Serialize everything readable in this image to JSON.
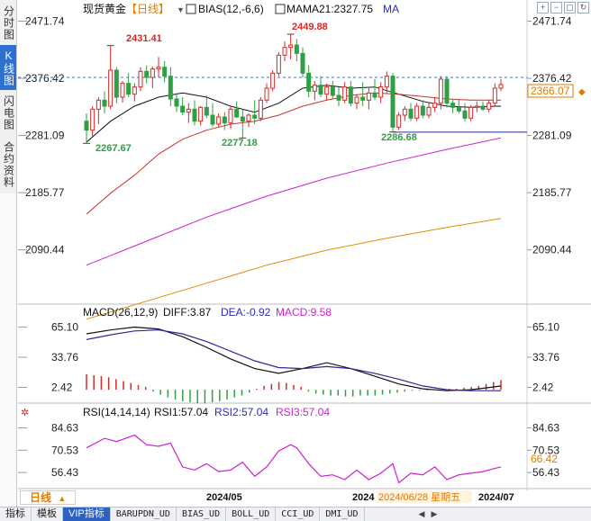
{
  "side_tabs": [
    {
      "label": "分时图",
      "active": false
    },
    {
      "label": "K线图",
      "active": true
    },
    {
      "label": "闪电图",
      "active": false
    },
    {
      "label": "合约资料",
      "active": false
    }
  ],
  "main_header": {
    "name": "现货黄金",
    "period": "【日线】",
    "bias": "BIAS(12,-6,6)",
    "mama": "MAMA21:2327.75",
    "ma": "MA"
  },
  "price_axis": {
    "ticks": [
      "2471.74",
      "2376.42",
      "2281.09",
      "2185.77",
      "2090.44"
    ]
  },
  "annotations": {
    "high1": "2431.41",
    "high2": "2449.88",
    "low1": "2267.67",
    "low2": "2277.18",
    "low3": "2286.68",
    "last_price": "2366.07"
  },
  "macd_header": {
    "title": "MACD(26,12,9)",
    "diff": "DIFF:3.87",
    "dea": "DEA:-0.92",
    "macd": "MACD:9.58"
  },
  "macd_axis": {
    "ticks": [
      "65.10",
      "33.76",
      "2.42"
    ]
  },
  "rsi_header": {
    "title": "RSI(14,14,14)",
    "rsi1": "RSI1:57.04",
    "rsi2": "RSI2:57.04",
    "rsi3": "RSI3:57.04"
  },
  "rsi_axis": {
    "ticks": [
      "84.63",
      "70.53",
      "56.43"
    ],
    "last": "66.42"
  },
  "date_axis": {
    "labels": [
      "2024/05",
      "2024",
      "2024/06/28 星期五",
      "2024/07"
    ]
  },
  "period_button": "日线",
  "bottom_tabs": [
    "指标",
    "模板",
    "VIP指标",
    "BARUPDN_UD",
    "BIAS_UD",
    "BOLL_UD",
    "CCI_UD",
    "DMI_UD"
  ],
  "colors": {
    "up": "#d62828",
    "down": "#2ea043",
    "ma_black": "#111111",
    "ma_red": "#c9302c",
    "ma_magenta": "#d01fd0",
    "ma_orange": "#e08a00",
    "macd_dea": "#2a2aa0",
    "rsi": "#d01fd0",
    "dashed": "#3a6fd8",
    "low_line": "#2a2aa0"
  },
  "chart_data": {
    "type": "candlestick",
    "title": "现货黄金 日线",
    "y_range": [
      2060,
      2480
    ],
    "candles": [
      {
        "o": 2305,
        "h": 2318,
        "l": 2268,
        "c": 2290
      },
      {
        "o": 2290,
        "h": 2330,
        "l": 2280,
        "c": 2325
      },
      {
        "o": 2325,
        "h": 2345,
        "l": 2300,
        "c": 2340
      },
      {
        "o": 2340,
        "h": 2355,
        "l": 2318,
        "c": 2330
      },
      {
        "o": 2330,
        "h": 2431,
        "l": 2325,
        "c": 2390
      },
      {
        "o": 2390,
        "h": 2395,
        "l": 2335,
        "c": 2345
      },
      {
        "o": 2345,
        "h": 2372,
        "l": 2336,
        "c": 2368
      },
      {
        "o": 2368,
        "h": 2385,
        "l": 2345,
        "c": 2350
      },
      {
        "o": 2350,
        "h": 2368,
        "l": 2338,
        "c": 2362
      },
      {
        "o": 2362,
        "h": 2395,
        "l": 2355,
        "c": 2388
      },
      {
        "o": 2388,
        "h": 2398,
        "l": 2368,
        "c": 2378
      },
      {
        "o": 2378,
        "h": 2396,
        "l": 2360,
        "c": 2392
      },
      {
        "o": 2392,
        "h": 2412,
        "l": 2378,
        "c": 2395
      },
      {
        "o": 2395,
        "h": 2405,
        "l": 2370,
        "c": 2380
      },
      {
        "o": 2380,
        "h": 2395,
        "l": 2330,
        "c": 2342
      },
      {
        "o": 2342,
        "h": 2352,
        "l": 2320,
        "c": 2330
      },
      {
        "o": 2330,
        "h": 2345,
        "l": 2315,
        "c": 2320
      },
      {
        "o": 2320,
        "h": 2335,
        "l": 2302,
        "c": 2325
      },
      {
        "o": 2325,
        "h": 2340,
        "l": 2298,
        "c": 2305
      },
      {
        "o": 2305,
        "h": 2330,
        "l": 2298,
        "c": 2328
      },
      {
        "o": 2328,
        "h": 2348,
        "l": 2310,
        "c": 2315
      },
      {
        "o": 2315,
        "h": 2335,
        "l": 2295,
        "c": 2300
      },
      {
        "o": 2300,
        "h": 2318,
        "l": 2295,
        "c": 2312
      },
      {
        "o": 2312,
        "h": 2320,
        "l": 2290,
        "c": 2302
      },
      {
        "o": 2302,
        "h": 2330,
        "l": 2292,
        "c": 2325
      },
      {
        "o": 2325,
        "h": 2338,
        "l": 2310,
        "c": 2312
      },
      {
        "o": 2312,
        "h": 2325,
        "l": 2277,
        "c": 2305
      },
      {
        "o": 2305,
        "h": 2318,
        "l": 2295,
        "c": 2315
      },
      {
        "o": 2315,
        "h": 2340,
        "l": 2300,
        "c": 2310
      },
      {
        "o": 2310,
        "h": 2345,
        "l": 2305,
        "c": 2340
      },
      {
        "o": 2340,
        "h": 2368,
        "l": 2335,
        "c": 2360
      },
      {
        "o": 2360,
        "h": 2390,
        "l": 2355,
        "c": 2385
      },
      {
        "o": 2385,
        "h": 2420,
        "l": 2380,
        "c": 2415
      },
      {
        "o": 2415,
        "h": 2438,
        "l": 2405,
        "c": 2428
      },
      {
        "o": 2428,
        "h": 2450,
        "l": 2408,
        "c": 2432
      },
      {
        "o": 2432,
        "h": 2442,
        "l": 2405,
        "c": 2418
      },
      {
        "o": 2418,
        "h": 2428,
        "l": 2378,
        "c": 2385
      },
      {
        "o": 2385,
        "h": 2398,
        "l": 2345,
        "c": 2355
      },
      {
        "o": 2355,
        "h": 2372,
        "l": 2340,
        "c": 2365
      },
      {
        "o": 2365,
        "h": 2380,
        "l": 2345,
        "c": 2350
      },
      {
        "o": 2350,
        "h": 2368,
        "l": 2340,
        "c": 2362
      },
      {
        "o": 2362,
        "h": 2372,
        "l": 2342,
        "c": 2348
      },
      {
        "o": 2348,
        "h": 2362,
        "l": 2330,
        "c": 2340
      },
      {
        "o": 2340,
        "h": 2370,
        "l": 2335,
        "c": 2362
      },
      {
        "o": 2362,
        "h": 2372,
        "l": 2330,
        "c": 2335
      },
      {
        "o": 2335,
        "h": 2350,
        "l": 2325,
        "c": 2345
      },
      {
        "o": 2345,
        "h": 2370,
        "l": 2330,
        "c": 2340
      },
      {
        "o": 2340,
        "h": 2360,
        "l": 2325,
        "c": 2352
      },
      {
        "o": 2352,
        "h": 2375,
        "l": 2340,
        "c": 2345
      },
      {
        "o": 2345,
        "h": 2370,
        "l": 2335,
        "c": 2362
      },
      {
        "o": 2362,
        "h": 2388,
        "l": 2352,
        "c": 2380
      },
      {
        "o": 2380,
        "h": 2385,
        "l": 2287,
        "c": 2295
      },
      {
        "o": 2295,
        "h": 2320,
        "l": 2290,
        "c": 2315
      },
      {
        "o": 2315,
        "h": 2330,
        "l": 2305,
        "c": 2325
      },
      {
        "o": 2325,
        "h": 2335,
        "l": 2305,
        "c": 2310
      },
      {
        "o": 2310,
        "h": 2335,
        "l": 2305,
        "c": 2330
      },
      {
        "o": 2330,
        "h": 2340,
        "l": 2310,
        "c": 2315
      },
      {
        "o": 2315,
        "h": 2335,
        "l": 2310,
        "c": 2328
      },
      {
        "o": 2328,
        "h": 2345,
        "l": 2320,
        "c": 2335
      },
      {
        "o": 2335,
        "h": 2380,
        "l": 2325,
        "c": 2375
      },
      {
        "o": 2375,
        "h": 2380,
        "l": 2328,
        "c": 2335
      },
      {
        "o": 2335,
        "h": 2342,
        "l": 2318,
        "c": 2328
      },
      {
        "o": 2328,
        "h": 2342,
        "l": 2318,
        "c": 2322
      },
      {
        "o": 2322,
        "h": 2335,
        "l": 2305,
        "c": 2310
      },
      {
        "o": 2310,
        "h": 2332,
        "l": 2305,
        "c": 2328
      },
      {
        "o": 2328,
        "h": 2338,
        "l": 2320,
        "c": 2330
      },
      {
        "o": 2330,
        "h": 2338,
        "l": 2322,
        "c": 2325
      },
      {
        "o": 2325,
        "h": 2340,
        "l": 2320,
        "c": 2335
      },
      {
        "o": 2335,
        "h": 2368,
        "l": 2330,
        "c": 2360
      },
      {
        "o": 2360,
        "h": 2375,
        "l": 2355,
        "c": 2366
      }
    ],
    "ma_series": [
      {
        "color": "ma_black",
        "points": [
          [
            0,
            2270
          ],
          [
            4,
            2305
          ],
          [
            8,
            2330
          ],
          [
            12,
            2345
          ],
          [
            16,
            2352
          ],
          [
            20,
            2345
          ],
          [
            24,
            2330
          ],
          [
            28,
            2320
          ],
          [
            32,
            2335
          ],
          [
            36,
            2360
          ],
          [
            40,
            2365
          ],
          [
            44,
            2360
          ],
          [
            48,
            2362
          ],
          [
            52,
            2350
          ],
          [
            56,
            2338
          ],
          [
            60,
            2330
          ],
          [
            64,
            2328
          ],
          [
            68,
            2330
          ],
          [
            69,
            2330
          ]
        ]
      },
      {
        "color": "ma_red",
        "points": [
          [
            0,
            2150
          ],
          [
            4,
            2185
          ],
          [
            8,
            2215
          ],
          [
            12,
            2250
          ],
          [
            16,
            2275
          ],
          [
            20,
            2290
          ],
          [
            24,
            2300
          ],
          [
            28,
            2305
          ],
          [
            32,
            2315
          ],
          [
            36,
            2330
          ],
          [
            40,
            2340
          ],
          [
            44,
            2348
          ],
          [
            48,
            2352
          ],
          [
            52,
            2350
          ],
          [
            56,
            2346
          ],
          [
            60,
            2342
          ],
          [
            64,
            2340
          ],
          [
            69,
            2340
          ]
        ]
      },
      {
        "color": "ma_magenta",
        "points": [
          [
            0,
            2065
          ],
          [
            10,
            2105
          ],
          [
            20,
            2145
          ],
          [
            30,
            2180
          ],
          [
            40,
            2210
          ],
          [
            50,
            2235
          ],
          [
            60,
            2258
          ],
          [
            69,
            2277
          ]
        ]
      },
      {
        "color": "ma_orange",
        "points": [
          [
            0,
            1975
          ],
          [
            10,
            2005
          ],
          [
            20,
            2035
          ],
          [
            30,
            2065
          ],
          [
            40,
            2090
          ],
          [
            50,
            2110
          ],
          [
            60,
            2128
          ],
          [
            69,
            2143
          ]
        ]
      }
    ],
    "macd": {
      "y_range": [
        -12,
        72
      ],
      "diff": [
        [
          0,
          58
        ],
        [
          4,
          62
        ],
        [
          8,
          65
        ],
        [
          12,
          63
        ],
        [
          16,
          55
        ],
        [
          20,
          44
        ],
        [
          24,
          32
        ],
        [
          28,
          22
        ],
        [
          32,
          17
        ],
        [
          36,
          22
        ],
        [
          40,
          28
        ],
        [
          44,
          22
        ],
        [
          48,
          14
        ],
        [
          52,
          6
        ],
        [
          56,
          1
        ],
        [
          60,
          -1
        ],
        [
          64,
          0
        ],
        [
          68,
          3
        ],
        [
          69,
          4
        ]
      ],
      "dea": [
        [
          0,
          52
        ],
        [
          4,
          57
        ],
        [
          8,
          61
        ],
        [
          12,
          62
        ],
        [
          16,
          58
        ],
        [
          20,
          50
        ],
        [
          24,
          40
        ],
        [
          28,
          30
        ],
        [
          32,
          23
        ],
        [
          36,
          22
        ],
        [
          40,
          24
        ],
        [
          44,
          22
        ],
        [
          48,
          17
        ],
        [
          52,
          11
        ],
        [
          56,
          4
        ],
        [
          60,
          0
        ],
        [
          64,
          -1
        ],
        [
          68,
          -1
        ],
        [
          69,
          -1
        ]
      ],
      "hist": [
        16,
        15,
        14,
        13,
        11,
        9,
        7,
        5,
        3,
        -2,
        -5,
        -8,
        -10,
        -12,
        -13,
        -14,
        -14,
        -13,
        -12,
        -10,
        -8,
        -6,
        -3,
        1,
        4,
        6,
        8,
        7,
        5,
        3,
        -2,
        -4,
        -5,
        -6,
        -6,
        -7,
        -7,
        -6,
        -6,
        -6,
        -5,
        -4,
        -3,
        -2,
        -1,
        -1,
        -1,
        0,
        0,
        1,
        1,
        2,
        3,
        4,
        6,
        8,
        10
      ]
    },
    "rsi": {
      "y_range": [
        48,
        90
      ],
      "values": [
        [
          0,
          72
        ],
        [
          3,
          78
        ],
        [
          5,
          76
        ],
        [
          8,
          80
        ],
        [
          10,
          74
        ],
        [
          12,
          73
        ],
        [
          14,
          75
        ],
        [
          16,
          60
        ],
        [
          18,
          58
        ],
        [
          20,
          62
        ],
        [
          22,
          57
        ],
        [
          24,
          58
        ],
        [
          26,
          63
        ],
        [
          28,
          54
        ],
        [
          30,
          60
        ],
        [
          32,
          70
        ],
        [
          34,
          74
        ],
        [
          35,
          72
        ],
        [
          37,
          62
        ],
        [
          39,
          54
        ],
        [
          41,
          55
        ],
        [
          43,
          52
        ],
        [
          45,
          58
        ],
        [
          47,
          52
        ],
        [
          49,
          56
        ],
        [
          51,
          62
        ],
        [
          52,
          50
        ],
        [
          54,
          56
        ],
        [
          56,
          55
        ],
        [
          58,
          60
        ],
        [
          60,
          52
        ],
        [
          62,
          55
        ],
        [
          64,
          56
        ],
        [
          66,
          57
        ],
        [
          68,
          59
        ],
        [
          69,
          60
        ]
      ]
    }
  }
}
